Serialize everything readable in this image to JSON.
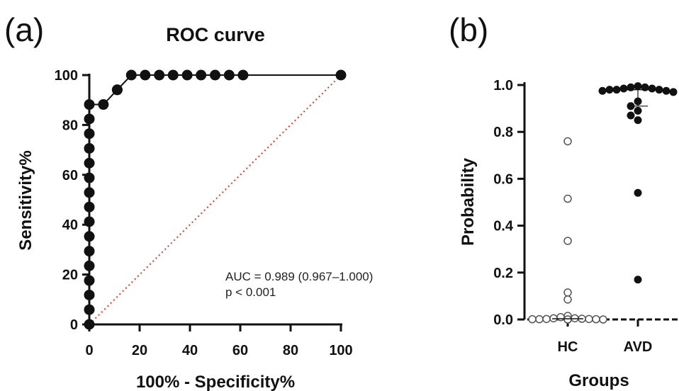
{
  "panels": {
    "a": {
      "label": "(a)",
      "chart_data": {
        "type": "line",
        "title": "ROC curve",
        "xlabel": "100% - Specificity%",
        "ylabel": "Sensitivity%",
        "xlim": [
          0,
          100
        ],
        "ylim": [
          0,
          100
        ],
        "xticks": [
          0,
          20,
          40,
          60,
          80,
          100
        ],
        "yticks": [
          0,
          20,
          40,
          60,
          80,
          100
        ],
        "series": [
          {
            "color": "#111111",
            "marker": "filled-circle",
            "x": [
              0,
              0,
              0,
              0,
              0,
              0,
              0,
              0,
              0,
              0,
              0,
              0,
              0,
              0,
              0,
              0,
              5.6,
              11.1,
              11.1,
              16.7,
              22.2,
              27.8,
              33.3,
              38.9,
              44.4,
              50,
              55.6,
              61.1,
              100
            ],
            "y": [
              0,
              5.9,
              11.8,
              17.6,
              23.5,
              29.4,
              35.3,
              41.2,
              47.1,
              52.9,
              58.8,
              64.7,
              70.6,
              76.5,
              82.4,
              88.2,
              88.2,
              94.1,
              94.1,
              100,
              100,
              100,
              100,
              100,
              100,
              100,
              100,
              100,
              100
            ]
          }
        ],
        "reference_line": {
          "x": [
            0,
            100
          ],
          "y": [
            0,
            100
          ],
          "color": "#e8342a",
          "style": "dotted"
        },
        "annotation": [
          "AUC = 0.989 (0.967–1.000)",
          "p < 0.001"
        ]
      }
    },
    "b": {
      "label": "(b)",
      "chart_data": {
        "type": "scatter",
        "xlabel": "Groups",
        "ylabel": "Probability",
        "categories": [
          "HC",
          "AVD"
        ],
        "ylim": [
          0,
          1.0
        ],
        "yticks": [
          "0.0",
          "0.2",
          "0.4",
          "0.6",
          "0.8",
          "1.0"
        ],
        "series": [
          {
            "category": "HC",
            "marker": "open-circle",
            "values": [
              0.76,
              0.515,
              0.335,
              0.115,
              0.085,
              0.015,
              0.01,
              0.005,
              0.005,
              0.003,
              0.002,
              0.002,
              0.001,
              0.001,
              0.001,
              0.0,
              0.0,
              0.0
            ],
            "median": 0.003
          },
          {
            "category": "AVD",
            "marker": "filled-circle",
            "values": [
              0.995,
              0.99,
              0.99,
              0.985,
              0.985,
              0.98,
              0.98,
              0.98,
              0.975,
              0.975,
              0.97,
              0.93,
              0.91,
              0.89,
              0.87,
              0.85,
              0.54,
              0.17
            ],
            "median": 0.98,
            "lower_whisker": 0.91
          }
        ]
      }
    }
  }
}
